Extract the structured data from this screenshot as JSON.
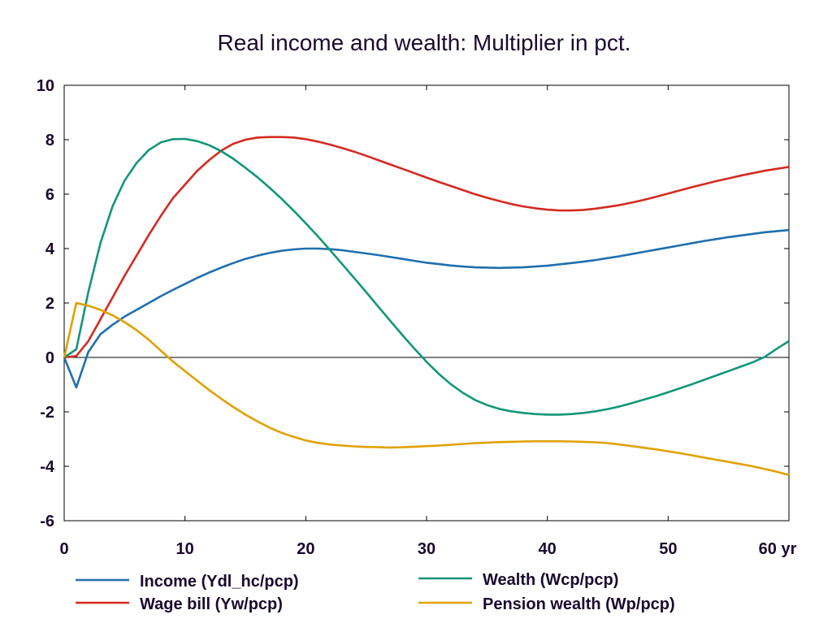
{
  "chart_data": {
    "type": "line",
    "title": "Real income and wealth: Multiplier in pct.",
    "xlabel": "",
    "ylabel": "",
    "x_unit": "yr",
    "xlim": [
      0,
      60
    ],
    "ylim": [
      -6,
      10
    ],
    "x_ticks": [
      0,
      10,
      20,
      30,
      40,
      50,
      60
    ],
    "x_tick_labels": [
      "0",
      "10",
      "20",
      "30",
      "40",
      "50",
      "60 yr"
    ],
    "y_ticks": [
      -6,
      -4,
      -2,
      0,
      2,
      4,
      6,
      8,
      10
    ],
    "y_tick_labels": [
      "-6",
      "-4",
      "-2",
      "0",
      "2",
      "4",
      "6",
      "8",
      "10"
    ],
    "grid": false,
    "zero_line": true,
    "legend_position": "bottom",
    "x": [
      0,
      1,
      2,
      3,
      4,
      5,
      6,
      7,
      8,
      9,
      10,
      11,
      12,
      13,
      14,
      15,
      16,
      17,
      18,
      19,
      20,
      21,
      22,
      23,
      24,
      25,
      26,
      27,
      28,
      29,
      30,
      31,
      32,
      33,
      34,
      35,
      36,
      37,
      38,
      39,
      40,
      41,
      42,
      43,
      44,
      45,
      46,
      47,
      48,
      49,
      50,
      51,
      52,
      53,
      54,
      55,
      56,
      57,
      58,
      59,
      60
    ],
    "series": [
      {
        "name": "Income (Ydl_hc/pcp)",
        "color": "#1f6fae",
        "values": [
          0,
          -1.1,
          0.2,
          0.85,
          1.2,
          1.5,
          1.75,
          2.0,
          2.25,
          2.48,
          2.7,
          2.92,
          3.12,
          3.3,
          3.47,
          3.62,
          3.74,
          3.84,
          3.92,
          3.97,
          4.0,
          4.0,
          3.98,
          3.94,
          3.88,
          3.82,
          3.76,
          3.69,
          3.62,
          3.55,
          3.48,
          3.43,
          3.38,
          3.34,
          3.31,
          3.3,
          3.29,
          3.3,
          3.31,
          3.34,
          3.37,
          3.42,
          3.47,
          3.52,
          3.58,
          3.65,
          3.72,
          3.8,
          3.88,
          3.96,
          4.04,
          4.12,
          4.2,
          4.28,
          4.35,
          4.42,
          4.48,
          4.54,
          4.6,
          4.64,
          4.68
        ]
      },
      {
        "name": "Wage bill (Yw/pcp)",
        "color": "#d42a22",
        "values": [
          0,
          0.05,
          0.6,
          1.4,
          2.2,
          3.0,
          3.75,
          4.5,
          5.2,
          5.85,
          6.35,
          6.85,
          7.25,
          7.6,
          7.85,
          8.0,
          8.08,
          8.1,
          8.1,
          8.08,
          8.02,
          7.93,
          7.82,
          7.7,
          7.56,
          7.41,
          7.25,
          7.09,
          6.93,
          6.77,
          6.61,
          6.45,
          6.3,
          6.15,
          6.0,
          5.87,
          5.75,
          5.64,
          5.55,
          5.48,
          5.43,
          5.4,
          5.4,
          5.42,
          5.47,
          5.53,
          5.6,
          5.69,
          5.79,
          5.9,
          6.02,
          6.14,
          6.26,
          6.37,
          6.48,
          6.58,
          6.68,
          6.77,
          6.86,
          6.93,
          7.0
        ]
      },
      {
        "name": "Wealth (Wcp/pcp)",
        "color": "#12967a",
        "values": [
          0,
          0.3,
          2.4,
          4.2,
          5.55,
          6.5,
          7.15,
          7.62,
          7.9,
          8.02,
          8.03,
          7.95,
          7.8,
          7.58,
          7.3,
          6.97,
          6.62,
          6.24,
          5.83,
          5.39,
          4.93,
          4.45,
          3.95,
          3.44,
          2.92,
          2.4,
          1.87,
          1.34,
          0.82,
          0.32,
          -0.16,
          -0.6,
          -0.98,
          -1.3,
          -1.56,
          -1.75,
          -1.89,
          -1.98,
          -2.04,
          -2.08,
          -2.1,
          -2.1,
          -2.08,
          -2.04,
          -1.98,
          -1.9,
          -1.8,
          -1.68,
          -1.55,
          -1.42,
          -1.28,
          -1.13,
          -0.98,
          -0.82,
          -0.66,
          -0.5,
          -0.34,
          -0.18,
          0.02,
          0.32,
          0.6
        ]
      },
      {
        "name": "Pension wealth (Wp/pcp)",
        "color": "#e0a100",
        "values": [
          0,
          2.0,
          1.9,
          1.75,
          1.55,
          1.3,
          1.0,
          0.65,
          0.25,
          -0.15,
          -0.5,
          -0.85,
          -1.2,
          -1.52,
          -1.82,
          -2.1,
          -2.35,
          -2.58,
          -2.77,
          -2.92,
          -3.05,
          -3.14,
          -3.2,
          -3.24,
          -3.27,
          -3.29,
          -3.3,
          -3.31,
          -3.3,
          -3.28,
          -3.26,
          -3.24,
          -3.21,
          -3.18,
          -3.15,
          -3.13,
          -3.11,
          -3.1,
          -3.09,
          -3.08,
          -3.08,
          -3.08,
          -3.09,
          -3.1,
          -3.12,
          -3.15,
          -3.2,
          -3.26,
          -3.32,
          -3.38,
          -3.45,
          -3.52,
          -3.6,
          -3.68,
          -3.76,
          -3.84,
          -3.92,
          -4.0,
          -4.1,
          -4.2,
          -4.32
        ]
      }
    ]
  }
}
